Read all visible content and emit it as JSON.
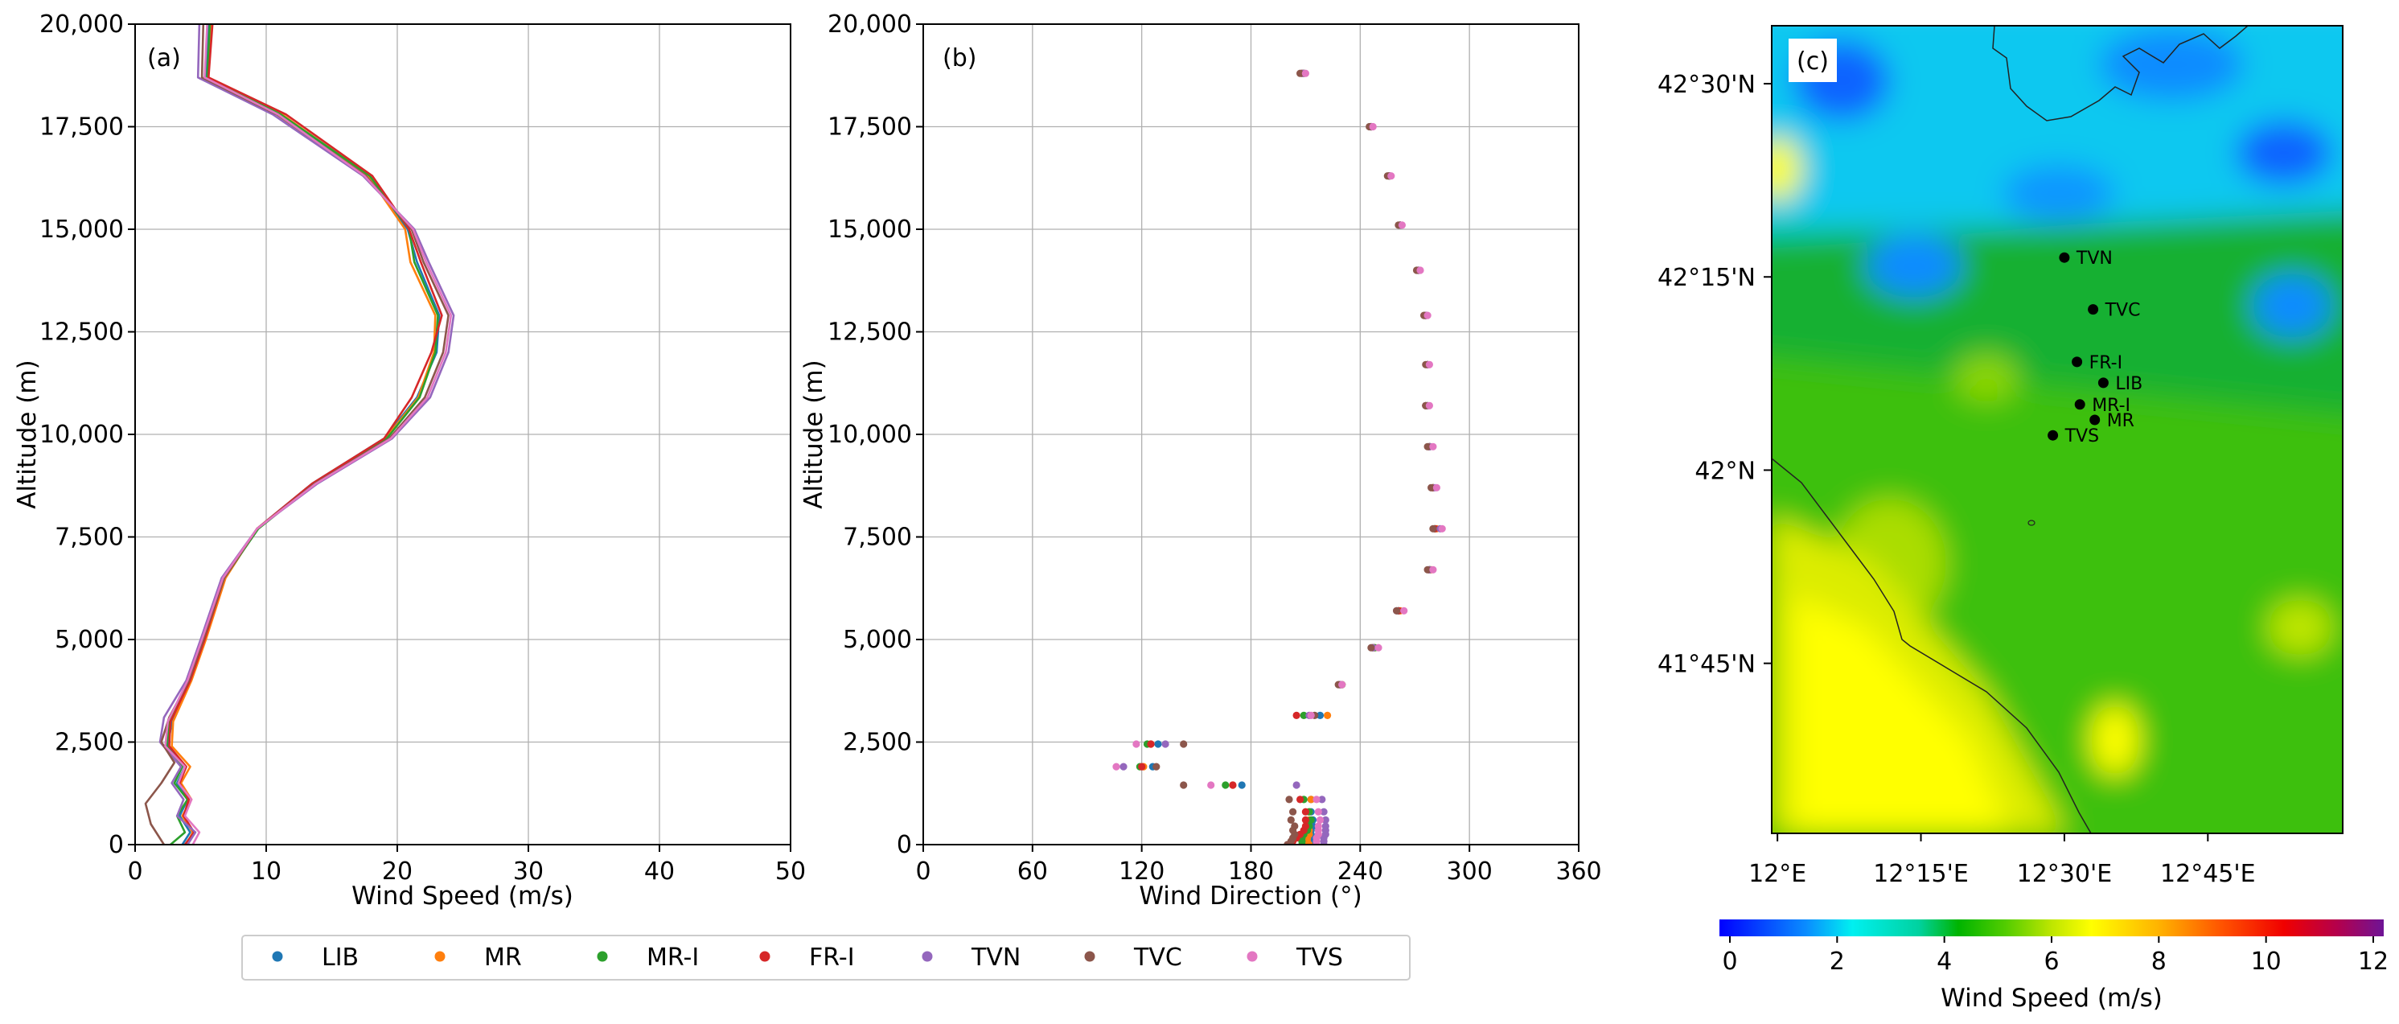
{
  "colors": {
    "LIB": "#1f77b4",
    "MR": "#ff7f0e",
    "MR-I": "#2ca02c",
    "FR-I": "#d62728",
    "TVN": "#9467bd",
    "TVC": "#8c564b",
    "TVS": "#e377c2"
  },
  "chart_data": [
    {
      "type": "line",
      "panel_label": "(a)",
      "xlabel": "Wind Speed (m/s)",
      "ylabel": "Altitude (m)",
      "xlim": [
        0,
        50
      ],
      "ylim": [
        0,
        20000
      ],
      "x_ticks": [
        "0",
        "10",
        "20",
        "30",
        "40",
        "50"
      ],
      "y_ticks": [
        "0",
        "2,500",
        "5,000",
        "7,500",
        "10,000",
        "12,500",
        "15,000",
        "17,500",
        "20,000"
      ],
      "grid": true,
      "series": [
        {
          "name": "LIB",
          "points": [
            [
              3.6,
              0
            ],
            [
              4.2,
              300
            ],
            [
              3.4,
              700
            ],
            [
              4.0,
              1100
            ],
            [
              3.2,
              1500
            ],
            [
              3.8,
              1900
            ],
            [
              2.5,
              2400
            ],
            [
              2.8,
              3000
            ],
            [
              4.2,
              4000
            ],
            [
              5.3,
              5000
            ],
            [
              6.8,
              6500
            ],
            [
              9.3,
              7700
            ],
            [
              13.5,
              8800
            ],
            [
              19.0,
              9900
            ],
            [
              21.5,
              10900
            ],
            [
              23.0,
              12000
            ],
            [
              23.2,
              12900
            ],
            [
              21.5,
              14200
            ],
            [
              20.8,
              15000
            ],
            [
              17.7,
              16300
            ],
            [
              11.0,
              17800
            ],
            [
              5.4,
              18700
            ],
            [
              5.6,
              20000
            ]
          ]
        },
        {
          "name": "MR",
          "points": [
            [
              3.9,
              0
            ],
            [
              4.4,
              300
            ],
            [
              3.6,
              700
            ],
            [
              4.3,
              1100
            ],
            [
              3.5,
              1500
            ],
            [
              4.2,
              1900
            ],
            [
              2.8,
              2400
            ],
            [
              2.9,
              3000
            ],
            [
              4.3,
              4000
            ],
            [
              5.4,
              5000
            ],
            [
              6.9,
              6500
            ],
            [
              9.3,
              7700
            ],
            [
              13.6,
              8800
            ],
            [
              19.1,
              9900
            ],
            [
              21.6,
              10900
            ],
            [
              22.8,
              12000
            ],
            [
              22.9,
              12900
            ],
            [
              21.0,
              14200
            ],
            [
              20.6,
              15000
            ],
            [
              17.8,
              16300
            ],
            [
              11.2,
              17800
            ],
            [
              5.5,
              18700
            ],
            [
              5.8,
              20000
            ]
          ]
        },
        {
          "name": "MR-I",
          "points": [
            [
              2.7,
              0
            ],
            [
              3.8,
              300
            ],
            [
              3.2,
              700
            ],
            [
              4.0,
              1100
            ],
            [
              3.0,
              1500
            ],
            [
              3.6,
              1900
            ],
            [
              2.4,
              2400
            ],
            [
              2.6,
              3000
            ],
            [
              4.1,
              4000
            ],
            [
              5.2,
              5000
            ],
            [
              6.8,
              6500
            ],
            [
              9.4,
              7700
            ],
            [
              13.7,
              8800
            ],
            [
              19.2,
              9900
            ],
            [
              21.7,
              10900
            ],
            [
              22.9,
              12000
            ],
            [
              23.1,
              12900
            ],
            [
              21.3,
              14200
            ],
            [
              20.9,
              15000
            ],
            [
              17.9,
              16300
            ],
            [
              11.1,
              17800
            ],
            [
              5.5,
              18700
            ],
            [
              5.7,
              20000
            ]
          ]
        },
        {
          "name": "FR-I",
          "points": [
            [
              3.8,
              0
            ],
            [
              4.5,
              300
            ],
            [
              3.7,
              700
            ],
            [
              4.1,
              1100
            ],
            [
              3.4,
              1500
            ],
            [
              3.9,
              1900
            ],
            [
              2.6,
              2400
            ],
            [
              2.7,
              3000
            ],
            [
              4.2,
              4000
            ],
            [
              5.3,
              5000
            ],
            [
              6.8,
              6500
            ],
            [
              9.3,
              7700
            ],
            [
              13.5,
              8800
            ],
            [
              19.0,
              9900
            ],
            [
              21.1,
              10900
            ],
            [
              22.6,
              12000
            ],
            [
              23.4,
              12900
            ],
            [
              21.8,
              14200
            ],
            [
              20.9,
              15000
            ],
            [
              18.1,
              16300
            ],
            [
              11.5,
              17800
            ],
            [
              5.6,
              18700
            ],
            [
              5.9,
              20000
            ]
          ]
        },
        {
          "name": "TVN",
          "points": [
            [
              4.0,
              0
            ],
            [
              4.6,
              300
            ],
            [
              3.2,
              700
            ],
            [
              3.7,
              1100
            ],
            [
              2.8,
              1500
            ],
            [
              3.5,
              1900
            ],
            [
              1.9,
              2500
            ],
            [
              2.2,
              3100
            ],
            [
              3.9,
              4000
            ],
            [
              5.0,
              5000
            ],
            [
              6.6,
              6500
            ],
            [
              9.3,
              7700
            ],
            [
              13.9,
              8800
            ],
            [
              19.6,
              9900
            ],
            [
              22.5,
              10900
            ],
            [
              23.9,
              12000
            ],
            [
              24.3,
              12900
            ],
            [
              22.4,
              14200
            ],
            [
              21.3,
              15000
            ],
            [
              17.4,
              16300
            ],
            [
              10.5,
              17800
            ],
            [
              4.8,
              18700
            ],
            [
              4.9,
              20000
            ]
          ]
        },
        {
          "name": "TVC",
          "points": [
            [
              2.2,
              0
            ],
            [
              1.2,
              500
            ],
            [
              0.8,
              1000
            ],
            [
              2.0,
              1500
            ],
            [
              3.0,
              2000
            ],
            [
              2.0,
              2500
            ],
            [
              2.6,
              3100
            ],
            [
              4.1,
              4000
            ],
            [
              5.2,
              5000
            ],
            [
              6.8,
              6500
            ],
            [
              9.3,
              7700
            ],
            [
              13.7,
              8800
            ],
            [
              19.4,
              9900
            ],
            [
              22.1,
              10900
            ],
            [
              23.5,
              12000
            ],
            [
              23.9,
              12900
            ],
            [
              22.0,
              14200
            ],
            [
              21.1,
              15000
            ],
            [
              17.6,
              16300
            ],
            [
              10.8,
              17800
            ],
            [
              5.1,
              18700
            ],
            [
              5.2,
              20000
            ]
          ]
        },
        {
          "name": "TVS",
          "points": [
            [
              4.4,
              0
            ],
            [
              4.9,
              300
            ],
            [
              3.8,
              700
            ],
            [
              4.3,
              1100
            ],
            [
              3.3,
              1500
            ],
            [
              3.8,
              1900
            ],
            [
              2.3,
              2400
            ],
            [
              2.5,
              3000
            ],
            [
              4.0,
              4000
            ],
            [
              5.1,
              5000
            ],
            [
              6.7,
              6500
            ],
            [
              9.3,
              7700
            ],
            [
              13.8,
              8800
            ],
            [
              19.5,
              9900
            ],
            [
              22.3,
              10900
            ],
            [
              23.7,
              12000
            ],
            [
              24.1,
              12900
            ],
            [
              22.2,
              14200
            ],
            [
              21.2,
              15000
            ],
            [
              17.5,
              16300
            ],
            [
              10.9,
              17800
            ],
            [
              5.3,
              18700
            ],
            [
              5.5,
              20000
            ]
          ]
        }
      ]
    },
    {
      "type": "scatter",
      "panel_label": "(b)",
      "xlabel": "Wind Direction (°)",
      "ylabel": "Altitude (m)",
      "xlim": [
        0,
        360
      ],
      "ylim": [
        0,
        20000
      ],
      "x_ticks": [
        "0",
        "60",
        "120",
        "180",
        "240",
        "300",
        "360"
      ],
      "y_ticks": [
        "0",
        "2,500",
        "5,000",
        "7,500",
        "10,000",
        "12,500",
        "15,000",
        "17,500",
        "20,000"
      ],
      "grid": true,
      "levels": [
        0,
        80,
        160,
        250,
        350,
        450,
        600,
        800,
        1100,
        1450,
        1900,
        2450,
        3150,
        3900,
        4800,
        5700,
        6700,
        7700,
        8700,
        9700,
        10700,
        11700,
        12900,
        14000,
        15100,
        16300,
        17500,
        18800
      ],
      "series": [
        {
          "name": "LIB",
          "directions": [
            215,
            214,
            213,
            213,
            213,
            214,
            214,
            213,
            213,
            175,
            126,
            129,
            218,
            229,
            247,
            261,
            278,
            281,
            280,
            278,
            276,
            277,
            276,
            272,
            262,
            256,
            246,
            208
          ]
        },
        {
          "name": "MR",
          "directions": [
            212,
            211,
            211,
            212,
            212,
            212,
            212,
            212,
            213,
            170,
            121,
            125,
            222,
            230,
            248,
            262,
            279,
            282,
            280,
            278,
            277,
            277,
            276,
            272,
            262,
            256,
            246,
            209
          ]
        },
        {
          "name": "MR-I",
          "directions": [
            208,
            208,
            208,
            209,
            211,
            212,
            213,
            212,
            209,
            166,
            119,
            123,
            209,
            230,
            248,
            261,
            278,
            281,
            280,
            278,
            277,
            277,
            276,
            272,
            262,
            256,
            246,
            209
          ]
        },
        {
          "name": "FR-I",
          "directions": [
            201,
            203,
            205,
            207,
            209,
            210,
            210,
            210,
            207,
            170,
            120,
            125,
            205,
            229,
            247,
            261,
            278,
            281,
            280,
            278,
            276,
            277,
            276,
            272,
            262,
            256,
            246,
            208
          ]
        },
        {
          "name": "TVN",
          "directions": [
            220,
            220,
            220,
            221,
            221,
            221,
            221,
            220,
            219,
            205,
            110,
            133,
            212,
            229,
            247,
            260,
            278,
            284,
            281,
            278,
            277,
            277,
            276,
            272,
            262,
            256,
            246,
            209
          ]
        },
        {
          "name": "TVC",
          "directions": [
            200,
            202,
            203,
            204,
            203,
            204,
            202,
            203,
            201,
            143,
            128,
            143,
            215,
            228,
            246,
            260,
            277,
            280,
            279,
            277,
            276,
            276,
            275,
            271,
            261,
            255,
            245,
            207
          ]
        },
        {
          "name": "TVS",
          "directions": [
            216,
            216,
            216,
            217,
            217,
            217,
            218,
            217,
            216,
            158,
            106,
            117,
            213,
            230,
            250,
            264,
            280,
            285,
            282,
            280,
            278,
            278,
            277,
            273,
            263,
            257,
            247,
            210
          ]
        }
      ]
    },
    {
      "type": "heatmap",
      "panel_label": "(c)",
      "lon_ticks": [
        "12°E",
        "12°15'E",
        "12°30'E",
        "12°45'E"
      ],
      "lat_ticks": [
        "41°45'N",
        "42°N",
        "42°15'N",
        "42°30'N"
      ],
      "colorbar_label": "Wind Speed (m/s)",
      "colorbar_range": [
        0,
        12
      ],
      "colorbar_ticks": [
        "0",
        "2",
        "4",
        "6",
        "8",
        "10",
        "12"
      ],
      "stations": [
        {
          "name": "TVN",
          "lon": 12.5,
          "lat": 42.275
        },
        {
          "name": "TVC",
          "lon": 12.55,
          "lat": 42.208
        },
        {
          "name": "FR-I",
          "lon": 12.522,
          "lat": 42.14
        },
        {
          "name": "LIB",
          "lon": 12.568,
          "lat": 42.113
        },
        {
          "name": "MR-I",
          "lon": 12.527,
          "lat": 42.085
        },
        {
          "name": "MR",
          "lon": 12.553,
          "lat": 42.065
        },
        {
          "name": "TVS",
          "lon": 12.48,
          "lat": 42.045
        }
      ]
    }
  ],
  "legend": [
    "LIB",
    "MR",
    "MR-I",
    "FR-I",
    "TVN",
    "TVC",
    "TVS"
  ]
}
